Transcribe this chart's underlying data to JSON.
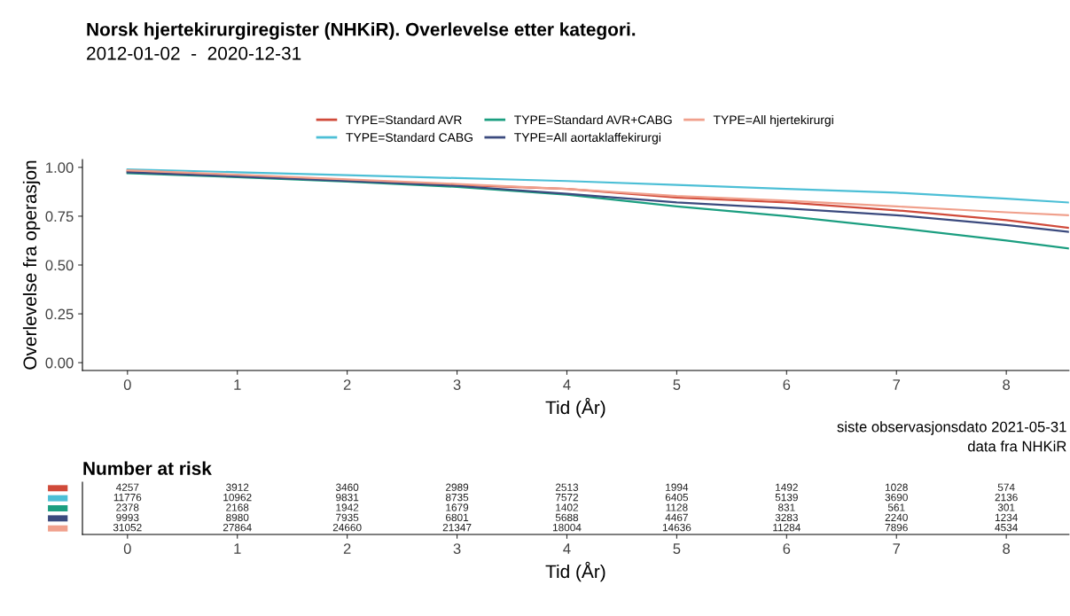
{
  "chart_data": [
    {
      "type": "line",
      "title": "Norsk hjertekirurgiregister (NHKiR). Overlevelse etter kategori.",
      "subtitle": "2012-01-02  -  2020-12-31",
      "xlabel": "Tid (År)",
      "ylabel": "Overlevelse fra operasjon",
      "x": [
        0,
        1,
        2,
        3,
        4,
        5,
        6,
        7,
        8,
        8.57
      ],
      "series": [
        {
          "name": "TYPE=Standard AVR",
          "color": "#d04a3a",
          "values": [
            0.98,
            0.958,
            0.935,
            0.91,
            0.89,
            0.845,
            0.82,
            0.78,
            0.73,
            0.69
          ]
        },
        {
          "name": "TYPE=Standard CABG",
          "color": "#4cbfd6",
          "values": [
            0.99,
            0.975,
            0.96,
            0.945,
            0.93,
            0.91,
            0.89,
            0.87,
            0.84,
            0.82
          ]
        },
        {
          "name": "TYPE=Standard AVR+CABG",
          "color": "#1b9e80",
          "values": [
            0.97,
            0.95,
            0.927,
            0.9,
            0.86,
            0.8,
            0.75,
            0.69,
            0.625,
            0.585
          ]
        },
        {
          "name": "TYPE=All aortaklaffekirurgi",
          "color": "#3b4a7e",
          "values": [
            0.975,
            0.953,
            0.93,
            0.905,
            0.865,
            0.82,
            0.79,
            0.755,
            0.705,
            0.67
          ]
        },
        {
          "name": "TYPE=All hjertekirurgi",
          "color": "#f0a08c",
          "values": [
            0.985,
            0.962,
            0.938,
            0.915,
            0.89,
            0.853,
            0.83,
            0.8,
            0.77,
            0.755
          ]
        }
      ],
      "xlim": [
        -0.41,
        8.57
      ],
      "ylim": [
        -0.04,
        1.04
      ],
      "xticks": [
        0,
        1,
        2,
        3,
        4,
        5,
        6,
        7,
        8
      ],
      "yticks": [
        {
          "value": 0,
          "label": "0.00"
        },
        {
          "value": 0.25,
          "label": "0.25"
        },
        {
          "value": 0.5,
          "label": "0.50"
        },
        {
          "value": 0.75,
          "label": "0.75"
        },
        {
          "value": 1,
          "label": "1.00"
        }
      ],
      "legend": "top",
      "grid": false,
      "annotations": [
        "siste observasjonsdato 2021-05-31",
        "data fra NHKiR"
      ]
    },
    {
      "type": "heatmap",
      "title": "Number at risk",
      "xlabel": "Tid (År)",
      "categories": [
        "0",
        "1",
        "2",
        "3",
        "4",
        "5",
        "6",
        "7",
        "8"
      ],
      "y_categories": [
        null,
        null,
        null,
        null,
        null
      ],
      "colors": [
        "#d04a3a",
        "#4cbfd6",
        "#1b9e80",
        "#3b4a7e",
        "#f0a08c"
      ],
      "cells": [
        [
          4257,
          3912,
          3460,
          2989,
          2513,
          1994,
          1492,
          1028,
          574
        ],
        [
          11776,
          10962,
          9831,
          8735,
          7572,
          6405,
          5139,
          3690,
          2136
        ],
        [
          2378,
          2168,
          1942,
          1679,
          1402,
          1128,
          831,
          561,
          301
        ],
        [
          9993,
          8980,
          7935,
          6801,
          5688,
          4467,
          3283,
          2240,
          1234
        ],
        [
          31052,
          27864,
          24660,
          21347,
          18004,
          14636,
          11284,
          7896,
          4534
        ]
      ],
      "data_labels": true
    }
  ]
}
